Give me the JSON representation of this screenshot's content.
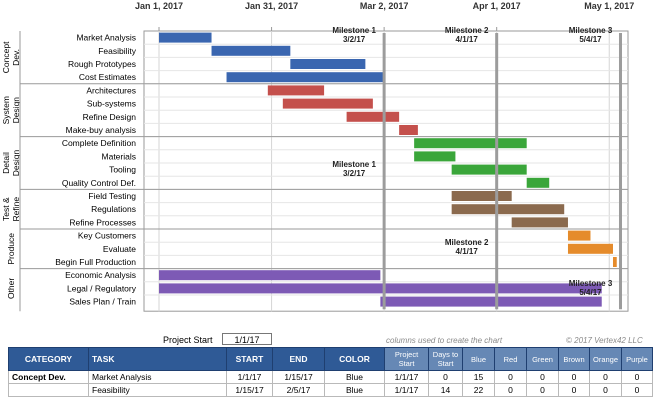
{
  "chart_data": {
    "type": "gantt",
    "date_axis": {
      "start": "2016-12-28",
      "end": "2017-05-06",
      "tick_labels": [
        "Jan 1, 2017",
        "Jan 31, 2017",
        "Mar 2, 2017",
        "Apr 1, 2017",
        "May 1, 2017"
      ],
      "tick_dates": [
        "2017-01-01",
        "2017-01-31",
        "2017-03-02",
        "2017-04-01",
        "2017-05-01"
      ]
    },
    "grid": true,
    "bar_colors": {
      "Blue": "#3a66b0",
      "Red": "#c4504c",
      "Green": "#3aa63a",
      "Brown": "#8b6a4e",
      "Orange": "#e58b2b",
      "Purple": "#7d5ab5"
    },
    "categories": [
      {
        "name": "Concept Dev.",
        "lines": [
          "Concept",
          "Dev."
        ]
      },
      {
        "name": "System Design",
        "lines": [
          "System",
          "Design"
        ]
      },
      {
        "name": "Detail Design",
        "lines": [
          "Detail",
          "Design"
        ]
      },
      {
        "name": "Test & Refine",
        "lines": [
          "Test &",
          "Refine"
        ]
      },
      {
        "name": "Produce",
        "lines": [
          "Produce"
        ]
      },
      {
        "name": "Other",
        "lines": [
          "Other"
        ]
      }
    ],
    "tasks": [
      {
        "name": "Market Analysis",
        "category": 0,
        "start": "2017-01-01",
        "end": "2017-01-15",
        "color": "Blue"
      },
      {
        "name": "Feasibility",
        "category": 0,
        "start": "2017-01-15",
        "end": "2017-02-05",
        "color": "Blue"
      },
      {
        "name": "Rough Prototypes",
        "category": 0,
        "start": "2017-02-05",
        "end": "2017-02-25",
        "color": "Blue"
      },
      {
        "name": "Cost Estimates",
        "category": 0,
        "start": "2017-01-19",
        "end": "2017-03-02",
        "color": "Blue"
      },
      {
        "name": "Architectures",
        "category": 1,
        "start": "2017-01-30",
        "end": "2017-02-14",
        "color": "Red"
      },
      {
        "name": "Sub-systems",
        "category": 1,
        "start": "2017-02-03",
        "end": "2017-02-27",
        "color": "Red"
      },
      {
        "name": "Refine Design",
        "category": 1,
        "start": "2017-02-20",
        "end": "2017-03-06",
        "color": "Red"
      },
      {
        "name": "Make-buy analysis",
        "category": 1,
        "start": "2017-03-06",
        "end": "2017-03-11",
        "color": "Red"
      },
      {
        "name": "Complete Definition",
        "category": 2,
        "start": "2017-03-10",
        "end": "2017-04-09",
        "color": "Green"
      },
      {
        "name": "Materials",
        "category": 2,
        "start": "2017-03-10",
        "end": "2017-03-21",
        "color": "Green"
      },
      {
        "name": "Tooling",
        "category": 2,
        "start": "2017-03-20",
        "end": "2017-04-09",
        "color": "Green"
      },
      {
        "name": "Quality Control Def.",
        "category": 2,
        "start": "2017-04-09",
        "end": "2017-04-15",
        "color": "Green"
      },
      {
        "name": "Field Testing",
        "category": 3,
        "start": "2017-03-20",
        "end": "2017-04-05",
        "color": "Brown"
      },
      {
        "name": "Regulations",
        "category": 3,
        "start": "2017-03-20",
        "end": "2017-04-19",
        "color": "Brown"
      },
      {
        "name": "Refine Processes",
        "category": 3,
        "start": "2017-04-05",
        "end": "2017-04-20",
        "color": "Brown"
      },
      {
        "name": "Key Customers",
        "category": 4,
        "start": "2017-04-20",
        "end": "2017-04-26",
        "color": "Orange"
      },
      {
        "name": "Evaluate",
        "category": 4,
        "start": "2017-04-20",
        "end": "2017-05-02",
        "color": "Orange"
      },
      {
        "name": "Begin Full Production",
        "category": 4,
        "start": "2017-05-02",
        "end": "2017-05-03",
        "color": "Orange"
      },
      {
        "name": "Economic Analysis",
        "category": 5,
        "start": "2017-01-01",
        "end": "2017-03-01",
        "color": "Purple"
      },
      {
        "name": "Legal / Regulatory",
        "category": 5,
        "start": "2017-01-01",
        "end": "2017-04-29",
        "color": "Purple"
      },
      {
        "name": "Sales Plan / Train",
        "category": 5,
        "start": "2017-03-01",
        "end": "2017-04-29",
        "color": "Purple"
      }
    ],
    "milestones": [
      {
        "title": "Milestone 1",
        "date_label": "3/2/17",
        "date": "2017-03-02"
      },
      {
        "title": "Milestone 2",
        "date_label": "4/1/17",
        "date": "2017-04-01"
      },
      {
        "title": "Milestone 3",
        "date_label": "5/4/17",
        "date": "2017-05-04"
      }
    ]
  },
  "project_start": {
    "label": "Project Start",
    "value": "1/1/17"
  },
  "chart_note": "columns used to create the chart",
  "copyright": "© 2017 Vertex42 LLC",
  "table": {
    "headers": {
      "category": "CATEGORY",
      "task": "TASK",
      "start": "START",
      "end": "END",
      "color": "COLOR",
      "project_start": "Project Start",
      "days_to_start": "Days to Start",
      "blue": "Blue",
      "red": "Red",
      "green": "Green",
      "brown": "Brown",
      "orange": "Orange",
      "purple": "Purple"
    },
    "rows": [
      {
        "category": "Concept Dev.",
        "task": "Market Analysis",
        "start": "1/1/17",
        "end": "1/15/17",
        "color": "Blue",
        "project_start": "1/1/17",
        "days_to_start": "0",
        "blue": "15",
        "red": "0",
        "green": "0",
        "brown": "0",
        "orange": "0",
        "purple": "0"
      },
      {
        "category": "",
        "task": "Feasibility",
        "start": "1/15/17",
        "end": "2/5/17",
        "color": "Blue",
        "project_start": "1/1/17",
        "days_to_start": "14",
        "blue": "22",
        "red": "0",
        "green": "0",
        "brown": "0",
        "orange": "0",
        "purple": "0"
      }
    ]
  }
}
